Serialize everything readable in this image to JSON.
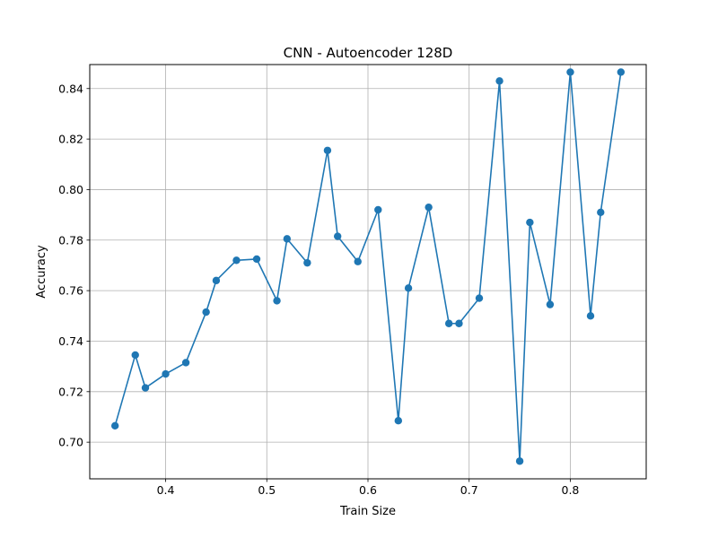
{
  "chart_data": {
    "type": "line",
    "title": "CNN - Autoencoder 128D",
    "xlabel": "Train Size",
    "ylabel": "Accuracy",
    "xlim": [
      0.325,
      0.875
    ],
    "ylim": [
      0.6855,
      0.8495
    ],
    "xticks": [
      0.4,
      0.5,
      0.6,
      0.7,
      0.8
    ],
    "xtick_labels": [
      "0.4",
      "0.5",
      "0.6",
      "0.7",
      "0.8"
    ],
    "yticks": [
      0.7,
      0.72,
      0.74,
      0.76,
      0.78,
      0.8,
      0.82,
      0.84
    ],
    "ytick_labels": [
      "0.70",
      "0.72",
      "0.74",
      "0.76",
      "0.78",
      "0.80",
      "0.82",
      "0.84"
    ],
    "grid": true,
    "series": [
      {
        "color": "#1f77b4",
        "marker": "circle",
        "x": [
          0.35,
          0.37,
          0.38,
          0.4,
          0.42,
          0.44,
          0.45,
          0.47,
          0.49,
          0.51,
          0.52,
          0.54,
          0.56,
          0.57,
          0.59,
          0.61,
          0.63,
          0.64,
          0.66,
          0.68,
          0.69,
          0.71,
          0.73,
          0.75,
          0.76,
          0.78,
          0.8,
          0.82,
          0.83,
          0.85
        ],
        "y": [
          0.7065,
          0.7345,
          0.7215,
          0.727,
          0.7315,
          0.7515,
          0.764,
          0.772,
          0.7725,
          0.756,
          0.7805,
          0.771,
          0.8155,
          0.7815,
          0.7715,
          0.792,
          0.7085,
          0.761,
          0.793,
          0.747,
          0.747,
          0.757,
          0.843,
          0.6925,
          0.787,
          0.7545,
          0.8465,
          0.75,
          0.791,
          0.8465
        ]
      }
    ]
  }
}
